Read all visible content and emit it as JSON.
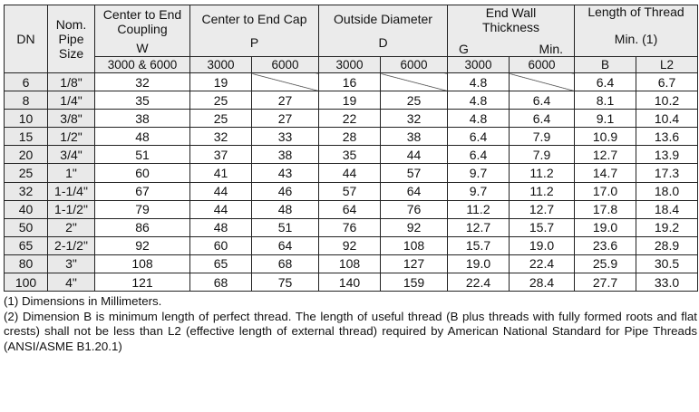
{
  "header": {
    "dn": "DN",
    "nps": [
      "Nom.",
      "Pipe",
      "Size"
    ],
    "w_title": [
      "Center to End",
      "Coupling"
    ],
    "w_letter": "W",
    "p_title": "Center to End Cap",
    "p_letter": "P",
    "d_title": "Outside Diameter",
    "d_letter": "D",
    "g_title": [
      "End Wall",
      "Thickness"
    ],
    "g_letter": "G",
    "g_min": "Min.",
    "thread_title": "Length of Thread",
    "thread_min": "Min. (1)",
    "sub": {
      "w_class": "3000 & 6000",
      "p_3000": "3000",
      "p_6000": "6000",
      "d_3000": "3000",
      "d_6000": "6000",
      "g_3000": "3000",
      "g_6000": "6000",
      "b": "B",
      "l2": "L2"
    }
  },
  "rows": [
    {
      "dn": "6",
      "nps": "1/8\"",
      "w": "32",
      "p3": "19",
      "p6": "",
      "d3": "16",
      "d6": "",
      "g3": "4.8",
      "g6": "",
      "b": "6.4",
      "l2": "6.7"
    },
    {
      "dn": "8",
      "nps": "1/4\"",
      "w": "35",
      "p3": "25",
      "p6": "27",
      "d3": "19",
      "d6": "25",
      "g3": "4.8",
      "g6": "6.4",
      "b": "8.1",
      "l2": "10.2"
    },
    {
      "dn": "10",
      "nps": "3/8\"",
      "w": "38",
      "p3": "25",
      "p6": "27",
      "d3": "22",
      "d6": "32",
      "g3": "4.8",
      "g6": "6.4",
      "b": "9.1",
      "l2": "10.4"
    },
    {
      "dn": "15",
      "nps": "1/2\"",
      "w": "48",
      "p3": "32",
      "p6": "33",
      "d3": "28",
      "d6": "38",
      "g3": "6.4",
      "g6": "7.9",
      "b": "10.9",
      "l2": "13.6"
    },
    {
      "dn": "20",
      "nps": "3/4\"",
      "w": "51",
      "p3": "37",
      "p6": "38",
      "d3": "35",
      "d6": "44",
      "g3": "6.4",
      "g6": "7.9",
      "b": "12.7",
      "l2": "13.9"
    },
    {
      "dn": "25",
      "nps": "1\"",
      "w": "60",
      "p3": "41",
      "p6": "43",
      "d3": "44",
      "d6": "57",
      "g3": "9.7",
      "g6": "11.2",
      "b": "14.7",
      "l2": "17.3"
    },
    {
      "dn": "32",
      "nps": "1-1/4\"",
      "w": "67",
      "p3": "44",
      "p6": "46",
      "d3": "57",
      "d6": "64",
      "g3": "9.7",
      "g6": "11.2",
      "b": "17.0",
      "l2": "18.0"
    },
    {
      "dn": "40",
      "nps": "1-1/2\"",
      "w": "79",
      "p3": "44",
      "p6": "48",
      "d3": "64",
      "d6": "76",
      "g3": "11.2",
      "g6": "12.7",
      "b": "17.8",
      "l2": "18.4"
    },
    {
      "dn": "50",
      "nps": "2\"",
      "w": "86",
      "p3": "48",
      "p6": "51",
      "d3": "76",
      "d6": "92",
      "g3": "12.7",
      "g6": "15.7",
      "b": "19.0",
      "l2": "19.2"
    },
    {
      "dn": "65",
      "nps": "2-1/2\"",
      "w": "92",
      "p3": "60",
      "p6": "64",
      "d3": "92",
      "d6": "108",
      "g3": "15.7",
      "g6": "19.0",
      "b": "23.6",
      "l2": "28.9"
    },
    {
      "dn": "80",
      "nps": "3\"",
      "w": "108",
      "p3": "65",
      "p6": "68",
      "d3": "108",
      "d6": "127",
      "g3": "19.0",
      "g6": "22.4",
      "b": "25.9",
      "l2": "30.5"
    },
    {
      "dn": "100",
      "nps": "4\"",
      "w": "121",
      "p3": "68",
      "p6": "75",
      "d3": "140",
      "d6": "159",
      "g3": "22.4",
      "g6": "28.4",
      "b": "27.7",
      "l2": "33.0"
    }
  ],
  "notes": [
    "(1) Dimensions in Millimeters.",
    "(2) Dimension B is minimum length of perfect thread.  The length of useful thread (B plus threads with fully formed roots and flat crests) shall not be less than L2 (effective length of external thread) required by American National Standard for Pipe Threads (ANSI/ASME B1.20.1)"
  ]
}
